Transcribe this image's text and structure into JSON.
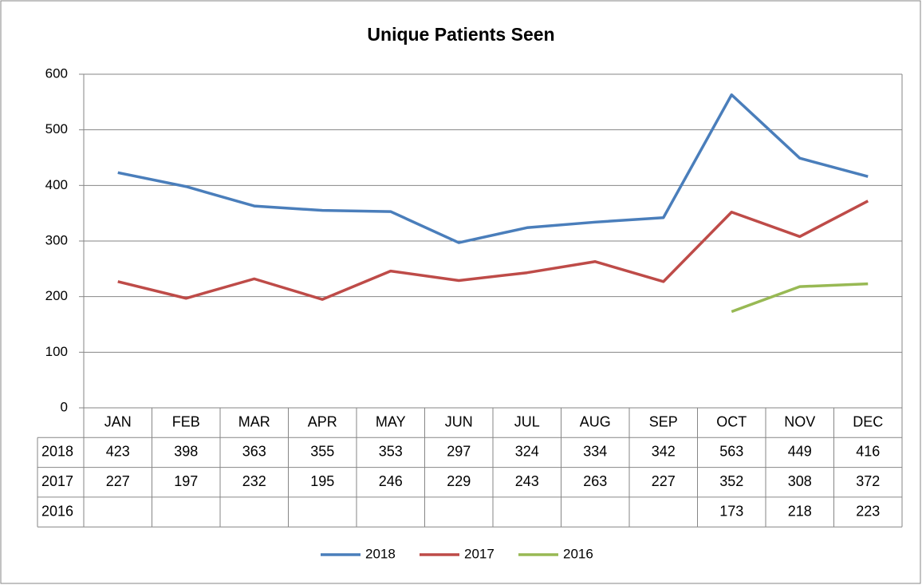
{
  "chart_data": {
    "type": "line",
    "title": "Unique Patients Seen",
    "categories": [
      "JAN",
      "FEB",
      "MAR",
      "APR",
      "MAY",
      "JUN",
      "JUL",
      "AUG",
      "SEP",
      "OCT",
      "NOV",
      "DEC"
    ],
    "series": [
      {
        "name": "2018",
        "color": "#4a7ebb",
        "values": [
          423,
          398,
          363,
          355,
          353,
          297,
          324,
          334,
          342,
          563,
          449,
          416
        ]
      },
      {
        "name": "2017",
        "color": "#be4b48",
        "values": [
          227,
          197,
          232,
          195,
          246,
          229,
          243,
          263,
          227,
          352,
          308,
          372
        ]
      },
      {
        "name": "2016",
        "color": "#98b954",
        "values": [
          null,
          null,
          null,
          null,
          null,
          null,
          null,
          null,
          null,
          173,
          218,
          223
        ]
      }
    ],
    "ylim": [
      0,
      600
    ],
    "yticks": [
      0,
      100,
      200,
      300,
      400,
      500,
      600
    ],
    "grid": true,
    "legend": "bottom"
  }
}
